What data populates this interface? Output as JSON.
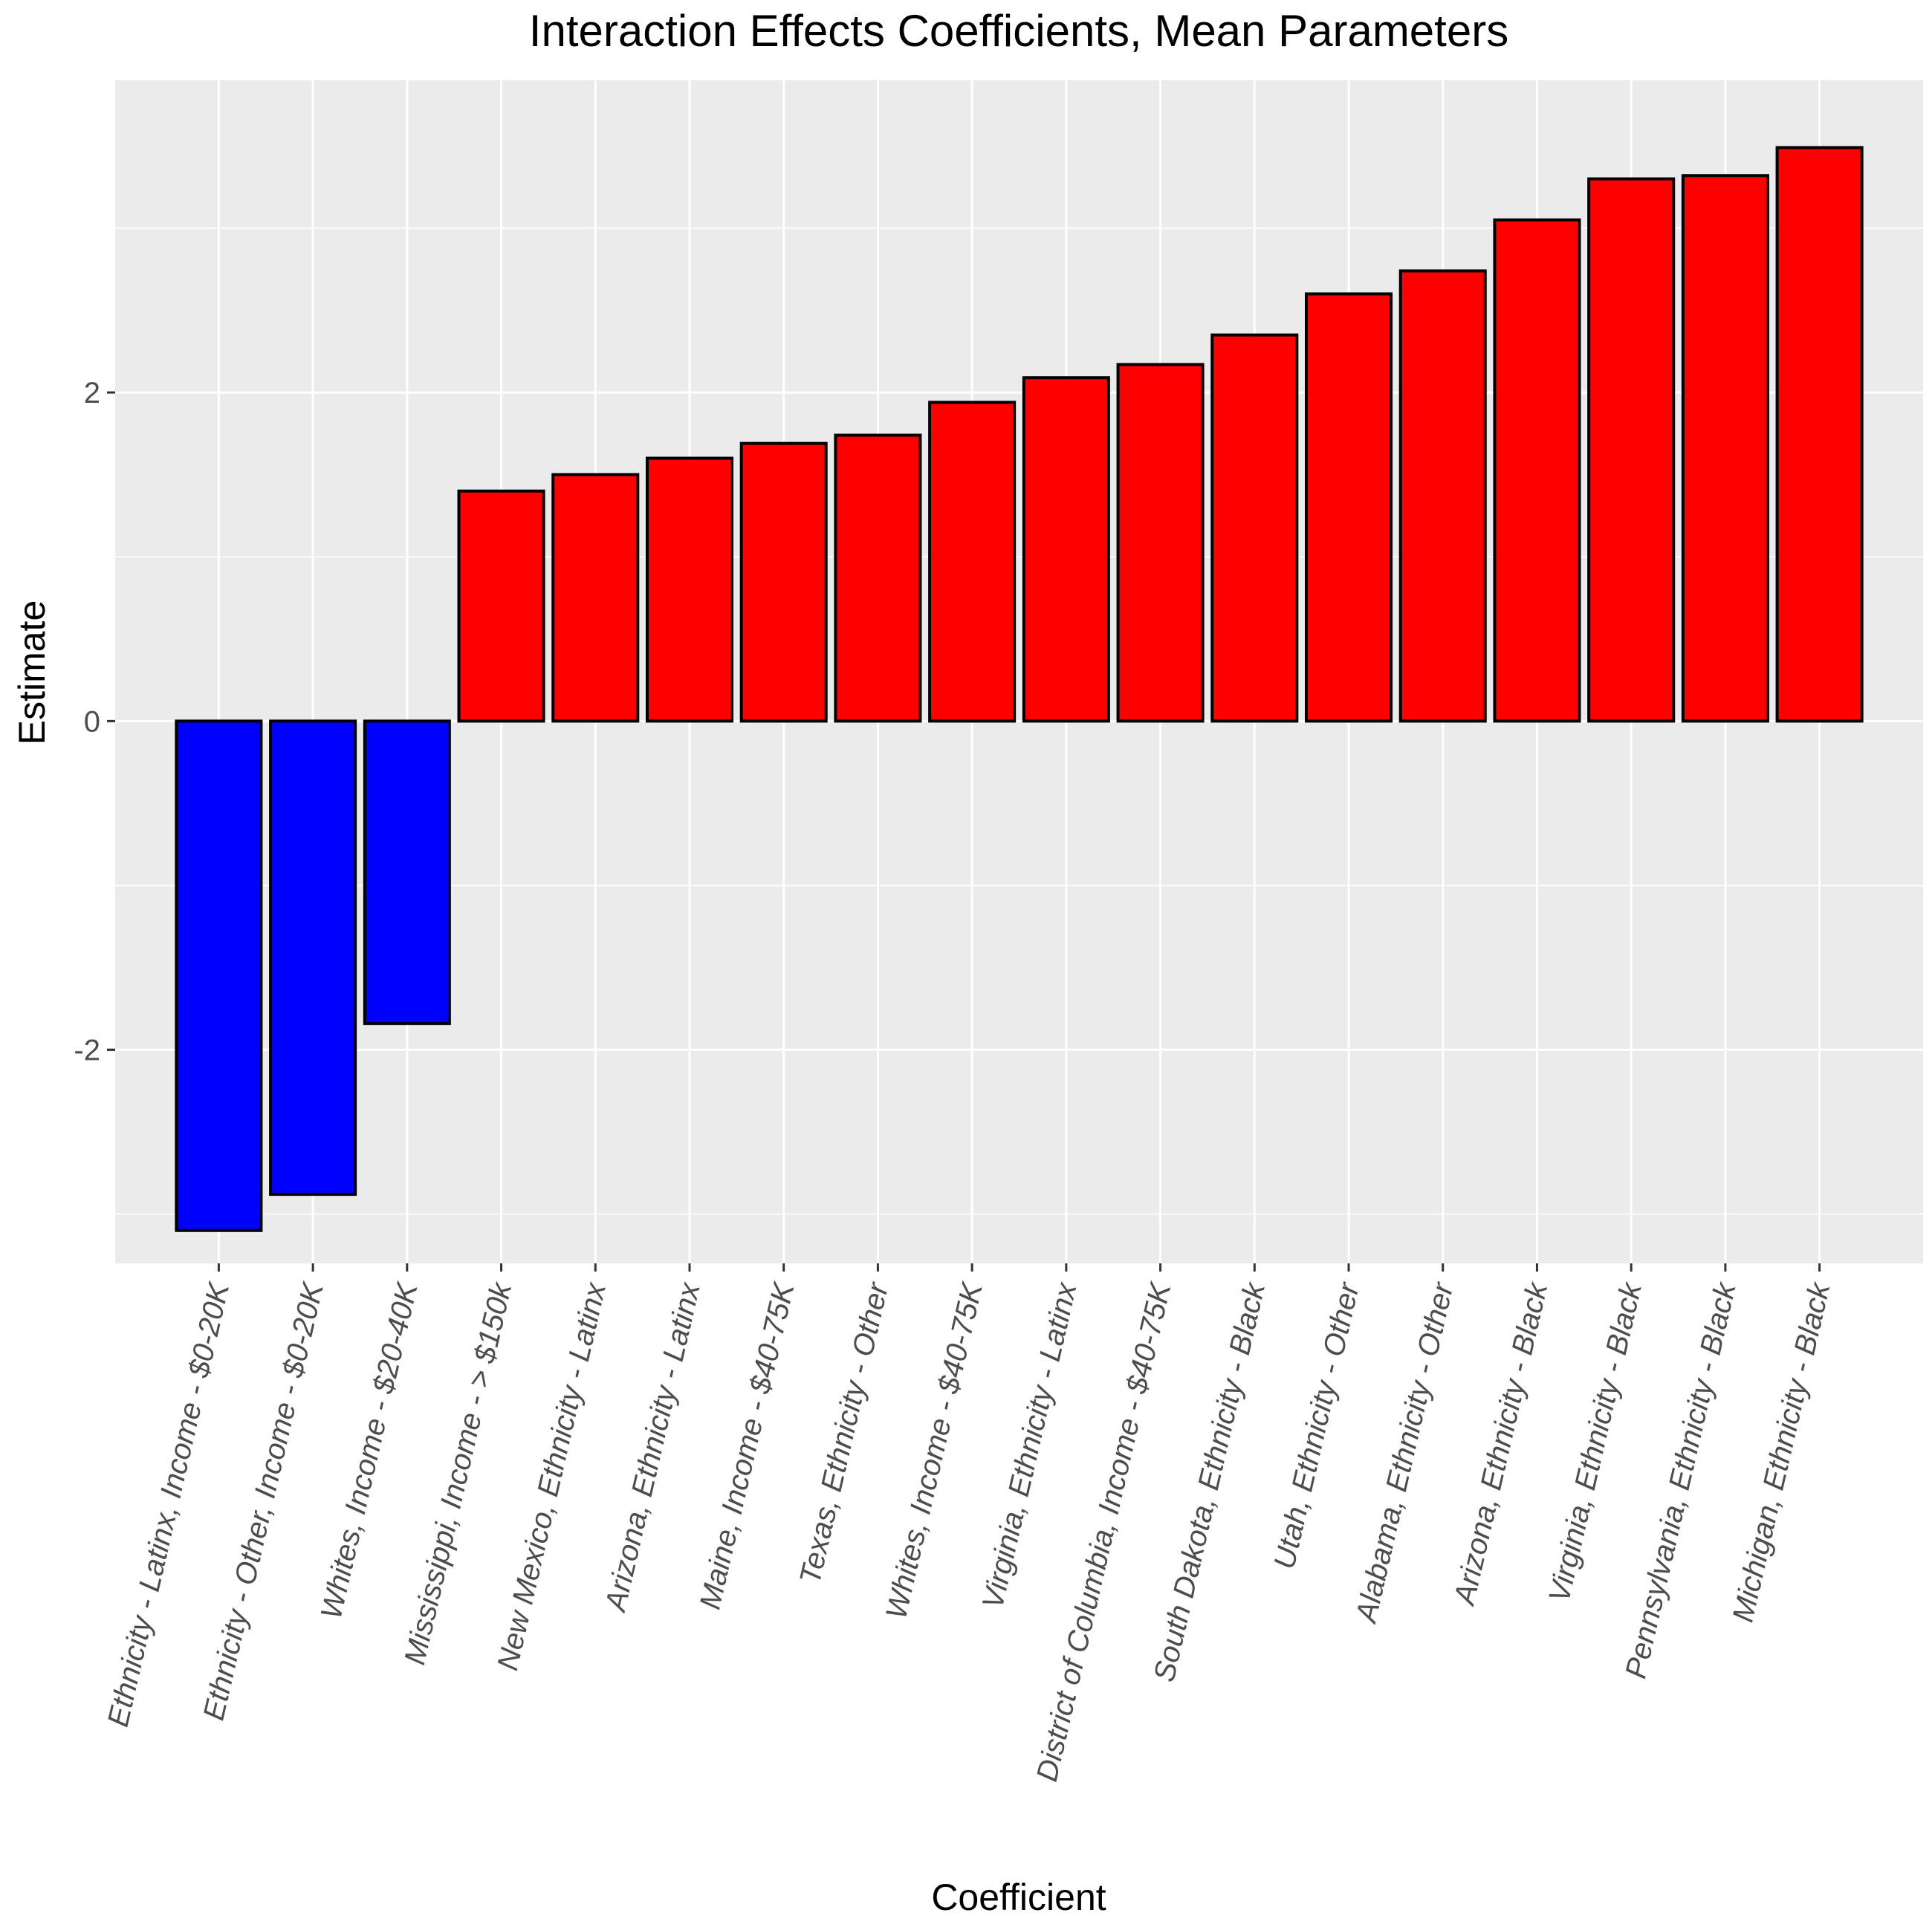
{
  "chart_data": {
    "type": "bar",
    "title": "Interaction Effects Coefficients, Mean Parameters",
    "xlabel": "Coefficient",
    "ylabel": "Estimate",
    "ylim": [
      -3.3,
      3.9
    ],
    "yticks": [
      -2,
      0,
      2
    ],
    "ytick_labels": [
      "-2",
      "0",
      "2"
    ],
    "grid": true,
    "legend": "none",
    "colors": {
      "negative": "#0000ff",
      "positive": "#ff0000",
      "outline": "#000000",
      "panel": "#ebebeb",
      "grid": "#ffffff"
    },
    "categories": [
      "Ethnicity - Latinx, Income - $0-20K",
      "Ethnicity - Other, Income - $0-20K",
      "Whites, Income - $20-40K",
      "Mississippi, Income - > $150k",
      "New Mexico, Ethnicity - Latinx",
      "Arizona, Ethnicity - Latinx",
      "Maine, Income - $40-75K",
      "Texas, Ethnicity - Other",
      "Whites, Income - $40-75K",
      "Virginia, Ethnicity - Latinx",
      "District of Columbia, Income - $40-75K",
      "South Dakota, Ethnicity - Black",
      "Utah, Ethnicity - Other",
      "Alabama, Ethnicity - Other",
      "Arizona, Ethnicity - Black",
      "Virginia, Ethnicity - Black",
      "Pennsylvania, Ethnicity - Black",
      "Michigan, Ethnicity - Black"
    ],
    "values": [
      -3.1,
      -2.88,
      -1.84,
      1.4,
      1.5,
      1.6,
      1.69,
      1.74,
      1.94,
      2.09,
      2.17,
      2.35,
      2.6,
      2.74,
      3.05,
      3.3,
      3.32,
      3.49
    ]
  }
}
